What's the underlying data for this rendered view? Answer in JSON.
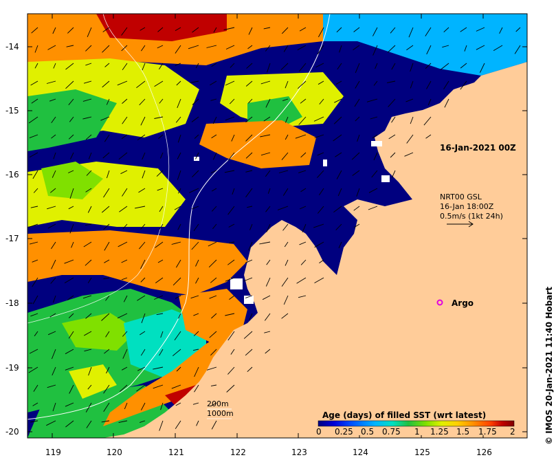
{
  "map": {
    "date_label": "16-Jan-2021 00Z",
    "current_legend": {
      "line1": "NRT00 GSL",
      "line2": "16-Jan 18:00Z",
      "line3": "0.5m/s (1kt 24h)"
    },
    "argo_label": "Argo",
    "isobaths": {
      "shallow": "200m",
      "deep": "1000m"
    },
    "credit": "© IMOS 20-Jan-2021 11:40 Hobart",
    "lat_ticks": [
      "-14",
      "-15",
      "-16",
      "-17",
      "-18",
      "-19",
      "-20"
    ],
    "lon_ticks": [
      "119",
      "120",
      "121",
      "122",
      "123",
      "124",
      "125",
      "126"
    ],
    "colorbar": {
      "title": "Age (days) of filled SST (wrt latest)",
      "tick_labels": [
        "0",
        "0.25",
        "0.5",
        "0.75",
        "1",
        "1.25",
        "1.5",
        "1.75",
        "2"
      ],
      "colors": [
        "#00007f",
        "#0000d8",
        "#0050ff",
        "#00b4ff",
        "#00e0c0",
        "#20c040",
        "#80e000",
        "#e0f000",
        "#ffd000",
        "#ff9000",
        "#ff4000",
        "#c00000",
        "#800000"
      ]
    },
    "colors": {
      "land": "#ffcc99",
      "arrow": "#000000",
      "argo_marker": "#e000e0",
      "contour": "#ffffff"
    }
  }
}
